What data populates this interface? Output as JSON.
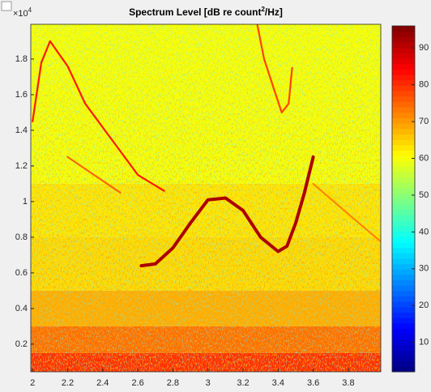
{
  "chart_data": {
    "type": "spectrogram",
    "title": "Spectrum Level [dB re count",
    "title_sup": "2",
    "title_end": "/Hz]",
    "y_exponent": "×10",
    "y_exponent_sup": "4",
    "colormap": "jet",
    "xlim": [
      1.99,
      3.985
    ],
    "xticks": [
      2,
      2.2,
      2.4,
      2.6,
      2.8,
      3,
      3.2,
      3.4,
      3.6,
      3.8
    ],
    "ylim": [
      450,
      19950
    ],
    "yticks": [
      {
        "value": 2000,
        "label": "0.2"
      },
      {
        "value": 4000,
        "label": "0.4"
      },
      {
        "value": 6000,
        "label": "0.6"
      },
      {
        "value": 8000,
        "label": "0.8"
      },
      {
        "value": 10000,
        "label": "1"
      },
      {
        "value": 12000,
        "label": "1.2"
      },
      {
        "value": 14000,
        "label": "1.4"
      },
      {
        "value": 16000,
        "label": "1.6"
      },
      {
        "value": 18000,
        "label": "1.8"
      }
    ],
    "clim": [
      2,
      96
    ],
    "cticks": [
      10,
      20,
      30,
      40,
      50,
      60,
      70,
      80,
      90
    ],
    "heatmap": {
      "band_edges": [
        450,
        1500,
        3000,
        5000,
        8000,
        11000,
        19950
      ],
      "levels": [
        80,
        74,
        68,
        64,
        63,
        60
      ]
    },
    "contours": [
      {
        "level": 92,
        "x": [
          2.62,
          2.7,
          2.8,
          2.9,
          3.0,
          3.1,
          3.2,
          3.3,
          3.4,
          3.45,
          3.5,
          3.55,
          3.6
        ],
        "y": [
          6400,
          6500,
          7400,
          8800,
          10100,
          10200,
          9500,
          8000,
          7200,
          7500,
          8800,
          10500,
          12500
        ]
      },
      {
        "level": 82,
        "x": [
          2.0,
          2.05,
          2.1,
          2.2,
          2.3,
          2.45,
          2.6,
          2.75
        ],
        "y": [
          14500,
          17800,
          19000,
          17600,
          15500,
          13500,
          11500,
          10600
        ]
      },
      {
        "level": 75,
        "x": [
          2.2,
          2.35,
          2.5
        ],
        "y": [
          12500,
          11500,
          10500
        ]
      },
      {
        "level": 78,
        "x": [
          3.28,
          3.32,
          3.38,
          3.42,
          3.46,
          3.48
        ],
        "y": [
          20000,
          18000,
          16200,
          15000,
          15500,
          17500
        ]
      },
      {
        "level": 72,
        "x": [
          3.6,
          3.8,
          3.98
        ],
        "y": [
          11000,
          9300,
          7800
        ]
      }
    ]
  }
}
